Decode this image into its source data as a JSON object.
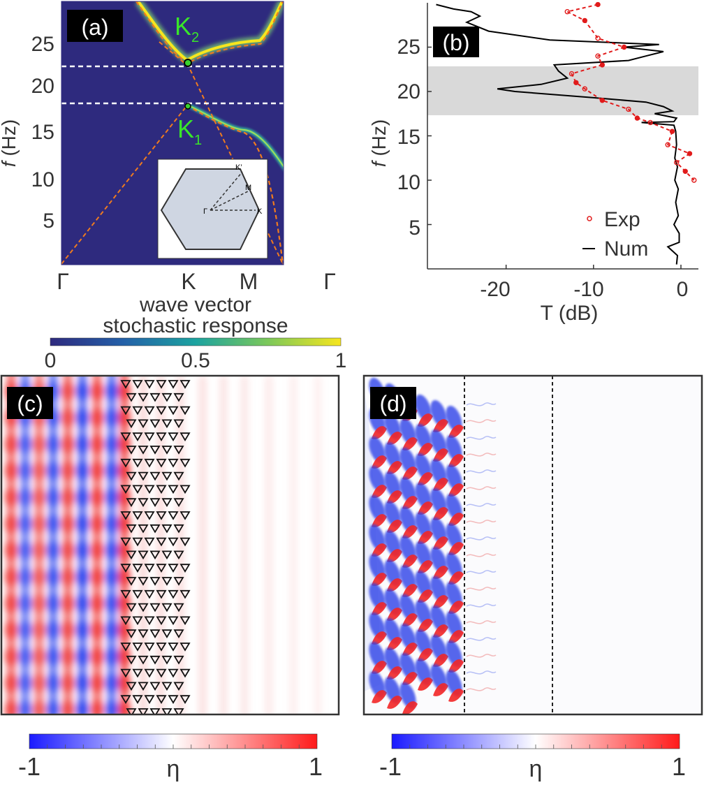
{
  "panel_a": {
    "label": "(a)",
    "ytick_prefix": "f",
    "ylabel": "(Hz)",
    "yticks": [
      "5",
      "10",
      "15",
      "20",
      "25"
    ],
    "xticks": [
      "Γ",
      "K",
      "M",
      "Γ"
    ],
    "xlabel": "wave vector",
    "k2_main": "K",
    "k2_sub": "2",
    "k1_main": "K",
    "k1_sub": "1",
    "inset_labels": {
      "gamma": "Γ",
      "k": "K",
      "m": "M",
      "kprime": "K’"
    },
    "colors": {
      "background": "#2e2a7e",
      "band": "#f7e61e",
      "dashed_fit": "#f07b1e",
      "marker": "#39d12e",
      "label": "#39e62a"
    }
  },
  "colorbar_top": {
    "title": "stochastic response",
    "ticks": [
      "0",
      "0.5",
      "1"
    ],
    "colormap": "viridis"
  },
  "panel_b": {
    "label": "(b)",
    "ytick_prefix": "f",
    "ylabel": "(Hz)",
    "yticks": [
      "5",
      "10",
      "15",
      "20",
      "25"
    ],
    "xticks": [
      "-20",
      "-10",
      "0"
    ],
    "xlabel": "T (dB)",
    "legend": {
      "exp": "Exp",
      "num": "Num"
    },
    "colors": {
      "exp": "#e11b1b",
      "num": "#000000",
      "band_gap_shade": "#d9d9d9"
    }
  },
  "panel_c": {
    "label": "(c)"
  },
  "panel_d": {
    "label": "(d)"
  },
  "colorbar_c": {
    "min": "-1",
    "mid": "η",
    "max": "1"
  },
  "colorbar_d": {
    "min": "-1",
    "mid": "η",
    "max": "1"
  },
  "chart_data": [
    {
      "type": "heatmap",
      "panel": "a",
      "xlabel": "wave vector",
      "ylabel": "f (Hz)",
      "ylim": [
        0,
        30
      ],
      "x_ticks": [
        "Γ",
        "K",
        "M",
        "Γ"
      ],
      "horizontal_dashed_lines": [
        18.5,
        22.8
      ],
      "points": [
        {
          "name": "K2",
          "x": "K",
          "y": 22.8
        },
        {
          "name": "K1",
          "x": "K",
          "y": 18.2
        }
      ]
    },
    {
      "type": "line",
      "panel": "b",
      "xlabel": "T (dB)",
      "ylabel": "f (Hz)",
      "xlim": [
        -29,
        2
      ],
      "ylim": [
        0,
        30
      ],
      "shaded_range_y": [
        17.5,
        23
      ],
      "series": [
        {
          "name": "Num",
          "points": [
            [
              -0.5,
              0.5
            ],
            [
              -0.4,
              1.5
            ],
            [
              -1.5,
              2.5
            ],
            [
              -0.2,
              3.0
            ],
            [
              -0.2,
              4.0
            ],
            [
              -0.8,
              5.0
            ],
            [
              -0.3,
              6.0
            ],
            [
              -0.6,
              7.5
            ],
            [
              -0.3,
              9.0
            ],
            [
              -0.7,
              10.0
            ],
            [
              -0.4,
              11.5
            ],
            [
              -0.7,
              12.5
            ],
            [
              -0.5,
              14.0
            ],
            [
              -0.6,
              15.5
            ],
            [
              -0.8,
              16.2
            ],
            [
              -4.5,
              16.5
            ],
            [
              -0.8,
              16.6
            ],
            [
              -0.5,
              17.0
            ],
            [
              -3.0,
              17.5
            ],
            [
              -1.0,
              17.8
            ],
            [
              -2.0,
              18.3
            ],
            [
              -4.0,
              18.8
            ],
            [
              -10.0,
              19.3
            ],
            [
              -19.0,
              20.0
            ],
            [
              -21.0,
              20.3
            ],
            [
              -16.0,
              20.8
            ],
            [
              -13.0,
              21.5
            ],
            [
              -14.0,
              22.3
            ],
            [
              -14.5,
              23.0
            ],
            [
              -6.0,
              23.5
            ],
            [
              -4.0,
              24.0
            ],
            [
              -2.0,
              24.5
            ],
            [
              -6.5,
              25.0
            ],
            [
              -2.5,
              25.3
            ],
            [
              -15.0,
              25.8
            ],
            [
              -22.0,
              26.8
            ],
            [
              -24.5,
              27.8
            ],
            [
              -23.0,
              28.5
            ],
            [
              -24.0,
              29.0
            ],
            [
              -26.0,
              29.3
            ],
            [
              -28.0,
              29.8
            ]
          ]
        },
        {
          "name": "Exp",
          "points": [
            [
              -9.5,
              29.8
            ],
            [
              -13.0,
              29.0
            ],
            [
              -11.0,
              28.0
            ],
            [
              -9.5,
              26.0
            ],
            [
              -6.5,
              25.0
            ],
            [
              -9.5,
              24.0
            ],
            [
              -9.0,
              23.0
            ],
            [
              -12.5,
              22.0
            ],
            [
              -12.0,
              21.0
            ],
            [
              -11.0,
              20.3
            ],
            [
              -9.0,
              19.0
            ],
            [
              -6.0,
              18.0
            ],
            [
              -5.0,
              17.0
            ],
            [
              -3.5,
              16.5
            ],
            [
              -1.0,
              15.5
            ],
            [
              -1.5,
              14.0
            ],
            [
              1.0,
              13.0
            ],
            [
              -0.5,
              12.0
            ],
            [
              0.5,
              11.0
            ],
            [
              1.5,
              10.0
            ]
          ]
        }
      ]
    },
    {
      "type": "heatmap",
      "panel": "c",
      "colorbar": {
        "label": "η",
        "range": [
          -1,
          1
        ]
      }
    },
    {
      "type": "heatmap",
      "panel": "d",
      "colorbar": {
        "label": "η",
        "range": [
          -1,
          1
        ]
      }
    }
  ]
}
